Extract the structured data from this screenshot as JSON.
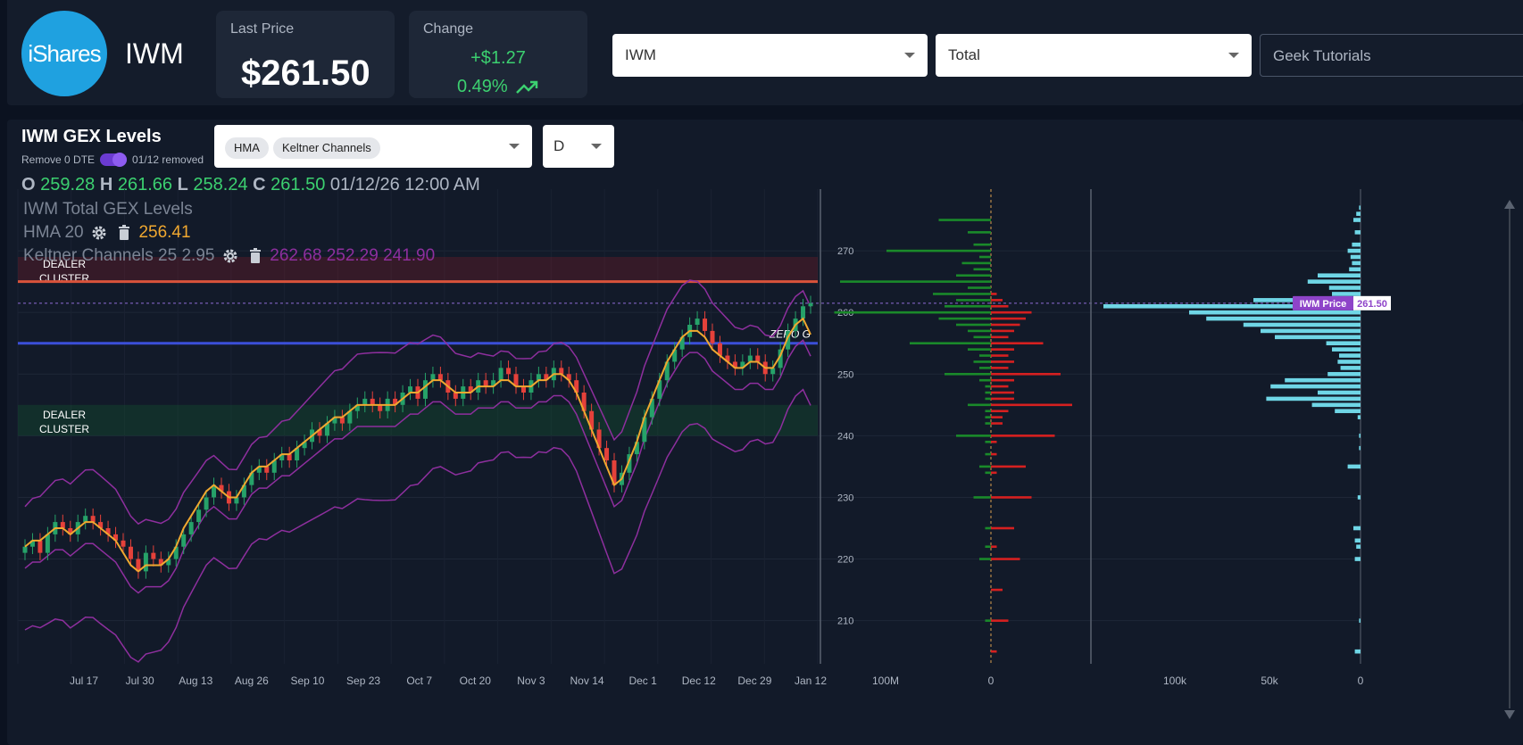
{
  "header": {
    "logo_text": "iShares",
    "ticker": "IWM",
    "last_price_label": "Last Price",
    "last_price": "$261.50",
    "change_label": "Change",
    "change_abs": "+$1.27",
    "change_pct": "0.49%",
    "symbol_select": "IWM",
    "type_select": "Total",
    "search_placeholder": "Geek Tutorials"
  },
  "panel": {
    "title": "IWM GEX Levels",
    "dte_label": "Remove 0 DTE",
    "dte_removed": "01/12 removed",
    "indicators": [
      "HMA",
      "Keltner Channels"
    ],
    "timeframe": "D",
    "ohlc": {
      "o_label": "O",
      "o": "259.28",
      "h_label": "H",
      "h": "261.66",
      "l_label": "L",
      "l": "258.24",
      "c_label": "C",
      "c": "261.50",
      "datetime": "01/12/26 12:00 AM"
    },
    "legend_title": "IWM Total GEX Levels",
    "hma_label": "HMA",
    "hma_period": "20",
    "hma_value": "256.41",
    "keltner_label": "Keltner Channels",
    "keltner_params": "25 2.95",
    "keltner_values": "262.68 252.29 241.90"
  },
  "icons": [
    "gear-icon",
    "trash-icon",
    "trending-up-icon",
    "chevron-down-icon"
  ],
  "colors": {
    "up": "#26a269",
    "down": "#e5413a",
    "hma": "#f0a830",
    "keltner": "#8e2f9e",
    "zero_gamma": "#3b4fd8",
    "resistance": "#d9533b",
    "call_gex": "#1a8a2a",
    "put_gex": "#d62020",
    "volume": "#6fd6e6",
    "price_tag": "#8e44c9"
  },
  "chart_data": {
    "type": "candlestick",
    "ylim": [
      203,
      280
    ],
    "y_ticks": [
      210,
      220,
      230,
      240,
      250,
      260,
      270
    ],
    "x_labels": [
      "Jul 17",
      "Jul 30",
      "Aug 13",
      "Aug 26",
      "Sep 10",
      "Sep 23",
      "Oct 7",
      "Oct 20",
      "Nov 3",
      "Nov 14",
      "Dec 1",
      "Dec 12",
      "Dec 29",
      "Jan 12"
    ],
    "close_series": [
      222,
      223,
      221,
      224,
      226,
      225,
      224,
      226,
      227,
      226,
      225,
      224,
      223,
      222,
      220,
      218,
      221,
      220,
      219,
      220,
      222,
      224,
      226,
      228,
      230,
      232,
      231,
      229,
      230,
      232,
      234,
      235,
      234,
      236,
      237,
      236,
      238,
      239,
      241,
      240,
      242,
      243,
      242,
      244,
      245,
      246,
      245,
      244,
      246,
      245,
      247,
      248,
      246,
      249,
      250,
      249,
      247,
      246,
      248,
      247,
      249,
      248,
      249,
      251,
      250,
      248,
      247,
      249,
      250,
      249,
      251,
      250,
      249,
      247,
      244,
      241,
      238,
      236,
      232,
      234,
      237,
      239,
      243,
      246,
      249,
      252,
      254,
      256,
      258,
      259,
      257,
      255,
      253,
      252,
      251,
      252,
      253,
      252,
      250,
      251,
      254,
      257,
      259,
      261,
      261.5
    ],
    "hma_series": [
      222,
      223,
      223,
      224,
      225,
      225,
      224,
      225,
      226,
      226,
      225,
      224,
      223,
      221,
      219,
      218,
      219,
      219,
      219,
      220,
      222,
      225,
      227,
      229,
      231,
      232,
      231,
      230,
      230,
      232,
      234,
      235,
      235,
      236,
      237,
      237,
      238,
      239,
      240,
      241,
      242,
      243,
      243,
      244,
      245,
      245,
      245,
      245,
      245,
      245,
      246,
      247,
      247,
      248,
      249,
      249,
      248,
      247,
      247,
      247,
      248,
      248,
      248,
      249,
      249,
      248,
      248,
      248,
      249,
      249,
      250,
      250,
      249,
      247,
      244,
      241,
      238,
      235,
      232,
      233,
      236,
      239,
      243,
      246,
      249,
      252,
      254,
      256,
      257,
      257,
      256,
      254,
      253,
      252,
      251,
      251,
      252,
      252,
      251,
      251,
      253,
      256,
      258,
      259,
      256.41
    ],
    "keltner": {
      "upper_end": 262.68,
      "middle_end": 252.29,
      "lower_end": 241.9
    },
    "zero_gamma_level": 255,
    "zero_gamma_label": "ZERO G",
    "dealer_cluster_label": "DEALER CLUSTER",
    "dealer_clusters": [
      {
        "low": 265,
        "high": 269
      },
      {
        "low": 240,
        "high": 245
      }
    ],
    "resistance_level": 265,
    "gex_axis_labels": [
      "100M",
      "0"
    ],
    "gex_levels": [
      {
        "strike": 275,
        "call": -0.45,
        "put": 0
      },
      {
        "strike": 273,
        "call": -0.2,
        "put": 0
      },
      {
        "strike": 271,
        "call": -0.15,
        "put": 0
      },
      {
        "strike": 270,
        "call": -0.9,
        "put": 0
      },
      {
        "strike": 269,
        "call": -0.1,
        "put": 0
      },
      {
        "strike": 268,
        "call": -0.25,
        "put": 0
      },
      {
        "strike": 267,
        "call": -0.15,
        "put": 0
      },
      {
        "strike": 266,
        "call": -0.3,
        "put": 0
      },
      {
        "strike": 265,
        "call": -1.3,
        "put": 0
      },
      {
        "strike": 264,
        "call": -0.2,
        "put": 0
      },
      {
        "strike": 263,
        "call": -0.5,
        "put": 0.05
      },
      {
        "strike": 262,
        "call": -0.3,
        "put": 0.1
      },
      {
        "strike": 261,
        "call": -0.4,
        "put": 0.15
      },
      {
        "strike": 260,
        "call": -1.35,
        "put": 0.35
      },
      {
        "strike": 259,
        "call": -0.45,
        "put": 0.3
      },
      {
        "strike": 258,
        "call": -0.3,
        "put": 0.25
      },
      {
        "strike": 257,
        "call": -0.2,
        "put": 0.2
      },
      {
        "strike": 256,
        "call": -0.15,
        "put": 0.15
      },
      {
        "strike": 255,
        "call": -0.7,
        "put": 0.45
      },
      {
        "strike": 254,
        "call": -0.2,
        "put": 0.2
      },
      {
        "strike": 253,
        "call": -0.1,
        "put": 0.15
      },
      {
        "strike": 252,
        "call": -0.15,
        "put": 0.2
      },
      {
        "strike": 251,
        "call": -0.1,
        "put": 0.15
      },
      {
        "strike": 250,
        "call": -0.4,
        "put": 0.6
      },
      {
        "strike": 249,
        "call": -0.1,
        "put": 0.2
      },
      {
        "strike": 248,
        "call": -0.05,
        "put": 0.15
      },
      {
        "strike": 247,
        "call": -0.05,
        "put": 0.2
      },
      {
        "strike": 246,
        "call": -0.05,
        "put": 0.2
      },
      {
        "strike": 245,
        "call": -0.2,
        "put": 0.7
      },
      {
        "strike": 244,
        "call": -0.05,
        "put": 0.15
      },
      {
        "strike": 243,
        "call": -0.05,
        "put": 0.1
      },
      {
        "strike": 242,
        "call": -0.05,
        "put": 0.1
      },
      {
        "strike": 240,
        "call": -0.3,
        "put": 0.55
      },
      {
        "strike": 239,
        "call": -0.05,
        "put": 0.05
      },
      {
        "strike": 237,
        "call": -0.05,
        "put": 0.05
      },
      {
        "strike": 235,
        "call": -0.1,
        "put": 0.3
      },
      {
        "strike": 234,
        "call": -0.05,
        "put": 0.05
      },
      {
        "strike": 230,
        "call": -0.15,
        "put": 0.35
      },
      {
        "strike": 225,
        "call": -0.05,
        "put": 0.2
      },
      {
        "strike": 222,
        "call": -0.05,
        "put": 0.05
      },
      {
        "strike": 220,
        "call": -0.1,
        "put": 0.25
      },
      {
        "strike": 215,
        "call": 0,
        "put": 0.1
      },
      {
        "strike": 210,
        "call": -0.05,
        "put": 0.15
      },
      {
        "strike": 205,
        "call": 0,
        "put": 0.05
      }
    ],
    "volume_axis_labels": [
      "100k",
      "50k",
      "0"
    ],
    "volume_by_strike": [
      {
        "strike": 277,
        "v": 1
      },
      {
        "strike": 276,
        "v": 3
      },
      {
        "strike": 275,
        "v": 5
      },
      {
        "strike": 273,
        "v": 4
      },
      {
        "strike": 271,
        "v": 6
      },
      {
        "strike": 270,
        "v": 9
      },
      {
        "strike": 269,
        "v": 7
      },
      {
        "strike": 268,
        "v": 6
      },
      {
        "strike": 267,
        "v": 8
      },
      {
        "strike": 266,
        "v": 30
      },
      {
        "strike": 265,
        "v": 37
      },
      {
        "strike": 264,
        "v": 22
      },
      {
        "strike": 263,
        "v": 20
      },
      {
        "strike": 262,
        "v": 75
      },
      {
        "strike": 261,
        "v": 180
      },
      {
        "strike": 260,
        "v": 120
      },
      {
        "strike": 259,
        "v": 108
      },
      {
        "strike": 258,
        "v": 82
      },
      {
        "strike": 257,
        "v": 70
      },
      {
        "strike": 256,
        "v": 60
      },
      {
        "strike": 255,
        "v": 24
      },
      {
        "strike": 254,
        "v": 20
      },
      {
        "strike": 253,
        "v": 15
      },
      {
        "strike": 252,
        "v": 16
      },
      {
        "strike": 251,
        "v": 14
      },
      {
        "strike": 250,
        "v": 23
      },
      {
        "strike": 249,
        "v": 53
      },
      {
        "strike": 248,
        "v": 63
      },
      {
        "strike": 247,
        "v": 30
      },
      {
        "strike": 246,
        "v": 66
      },
      {
        "strike": 245,
        "v": 34
      },
      {
        "strike": 244,
        "v": 18
      },
      {
        "strike": 243,
        "v": 2
      },
      {
        "strike": 240,
        "v": 1
      },
      {
        "strike": 238,
        "v": 1
      },
      {
        "strike": 235,
        "v": 9
      },
      {
        "strike": 230,
        "v": 2
      },
      {
        "strike": 225,
        "v": 5
      },
      {
        "strike": 223,
        "v": 4
      },
      {
        "strike": 222,
        "v": 3
      },
      {
        "strike": 220,
        "v": 4
      },
      {
        "strike": 210,
        "v": 1
      },
      {
        "strike": 205,
        "v": 4
      }
    ],
    "price_tag_label": "IWM Price",
    "price_tag_value": "261.50"
  }
}
